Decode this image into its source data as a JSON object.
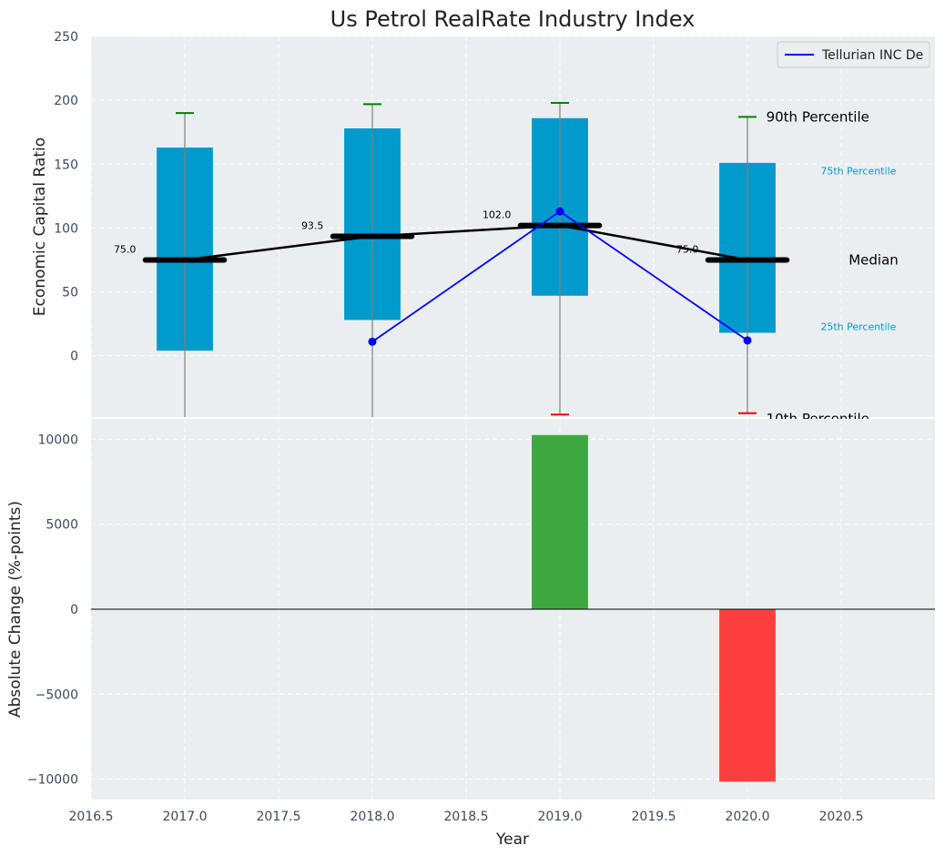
{
  "chart_data": [
    {
      "type": "box",
      "title": "Us Petrol RealRate Industry Index",
      "xlabel": "",
      "ylabel": "Economic Capital Ratio",
      "xlim": [
        2016.5,
        2021.0
      ],
      "ylim": [
        -48,
        250
      ],
      "yticks": [
        0,
        50,
        100,
        150,
        200,
        250
      ],
      "grid": true,
      "legend": {
        "position": "top-right",
        "entries": [
          "Tellurian INC De"
        ]
      },
      "boxes": [
        {
          "x": 2017,
          "p10": -60,
          "p25": 4,
          "median": 75,
          "p75": 163,
          "p90": 190,
          "median_label": "75.0"
        },
        {
          "x": 2018,
          "p10": -60,
          "p25": 28,
          "median": 93.5,
          "p75": 178,
          "p90": 197,
          "median_label": "93.5"
        },
        {
          "x": 2019,
          "p10": -46,
          "p25": 47,
          "median": 102,
          "p75": 186,
          "p90": 198,
          "median_label": "102.0"
        },
        {
          "x": 2020,
          "p10": -45,
          "p25": 18,
          "median": 75,
          "p75": 151,
          "p90": 187,
          "median_label": "75.0"
        }
      ],
      "series": [
        {
          "name": "Tellurian INC De",
          "color": "#0000ff",
          "x": [
            2018,
            2019,
            2020
          ],
          "y": [
            11,
            113,
            12
          ]
        }
      ],
      "annotations": {
        "p90": "90th Percentile",
        "p75": "75th Percentile",
        "median": "Median",
        "p25": "25th Percentile",
        "p10": "10th Percentile"
      },
      "colors": {
        "box": "#009ACD",
        "median_line": "#000000",
        "p90_cap": "#008000",
        "p10_cap": "#ff0000",
        "whisker": "#808080"
      }
    },
    {
      "type": "bar",
      "xlabel": "Year",
      "ylabel": "Absolute Change (%-points)",
      "xlim": [
        2016.5,
        2021.0
      ],
      "ylim": [
        -11200,
        11200
      ],
      "yticks": [
        -10000,
        -5000,
        0,
        5000,
        10000
      ],
      "ytick_labels": [
        "−10000",
        "−5000",
        "0",
        "5000",
        "10000"
      ],
      "xticks": [
        2016.5,
        2017.0,
        2017.5,
        2018.0,
        2018.5,
        2019.0,
        2019.5,
        2020.0,
        2020.5
      ],
      "xtick_labels": [
        "2016.5",
        "2017.0",
        "2017.5",
        "2018.0",
        "2018.5",
        "2019.0",
        "2019.5",
        "2020.0",
        "2020.5"
      ],
      "grid": true,
      "x": [
        2019,
        2020
      ],
      "values": [
        10250,
        -10150
      ],
      "colors": {
        "positive": "#2ca02c",
        "negative": "#ff2a2a"
      }
    }
  ]
}
